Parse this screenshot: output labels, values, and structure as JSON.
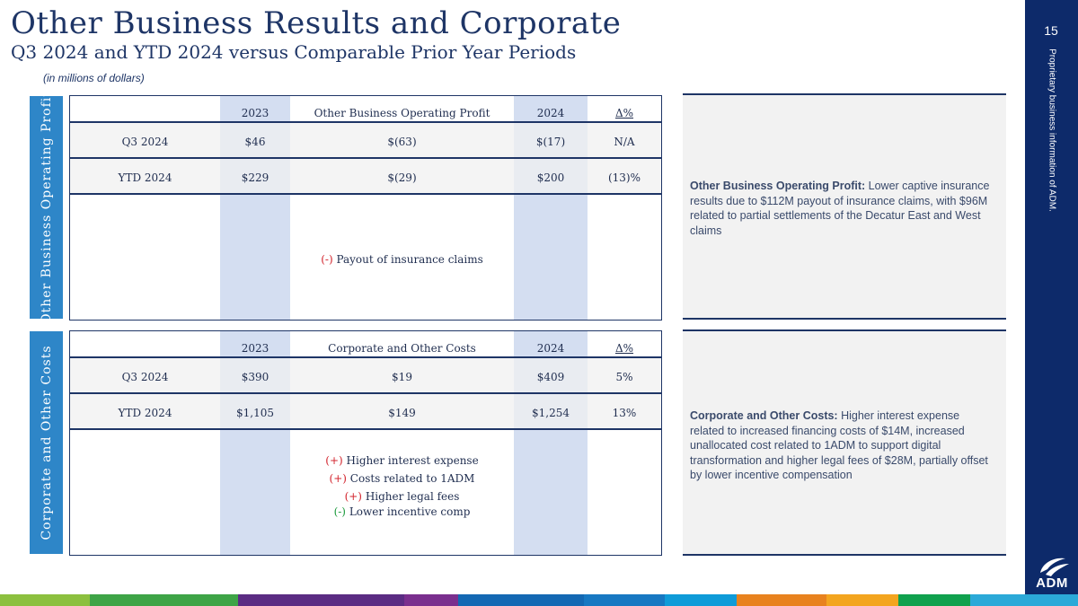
{
  "header": {
    "title": "Other Business Results and Corporate",
    "subtitle": "Q3 2024 and YTD 2024 versus Comparable Prior Year Periods",
    "units_note": "(in millions of dollars)"
  },
  "page_number": "15",
  "confidentiality": "Proprietary business information of ADM.",
  "logo": {
    "text": "ADM"
  },
  "colors": {
    "navy": "#1e3566",
    "side_tab_blue": "#2e86c8",
    "column_highlight": "#d4def1",
    "increase_red": "#d3262f",
    "decrease_green": "#1e9c3e",
    "right_bar": "#0d2a6a",
    "footer_stripes": [
      "#8cc03f",
      "#3ea446",
      "#6b2d8a",
      "#5b2c83",
      "#7a2f8e",
      "#1368b3",
      "#1778c2",
      "#0f9bd8",
      "#e8821e",
      "#f3a51f",
      "#10a14e",
      "#2ba9d8"
    ]
  },
  "sections": [
    {
      "side_label": "Other Business Operating Profit",
      "columns": [
        "2023",
        "Other Business Operating Profit",
        "2024",
        "Δ%"
      ],
      "rows": [
        {
          "period": "Q3 2024",
          "prior": "$46",
          "change": "$(63)",
          "current": "$(17)",
          "pct": "N/A"
        },
        {
          "period": "YTD 2024",
          "prior": "$229",
          "change": "$(29)",
          "current": "$200",
          "pct": "(13)%"
        }
      ],
      "drivers": [
        {
          "sign": "(-)",
          "text": "Payout of insurance claims",
          "direction": "decrease"
        }
      ],
      "commentary": {
        "heading": "Other Business Operating Profit:",
        "body": " Lower captive insurance results due to $112M payout of insurance claims, with $96M related to partial settlements of the Decatur East and West claims"
      }
    },
    {
      "side_label": "Corporate and Other Costs",
      "columns": [
        "2023",
        "Corporate and Other Costs",
        "2024",
        "Δ%"
      ],
      "rows": [
        {
          "period": "Q3 2024",
          "prior": "$390",
          "change": "$19",
          "current": "$409",
          "pct": "5%"
        },
        {
          "period": "YTD 2024",
          "prior": "$1,105",
          "change": "$149",
          "current": "$1,254",
          "pct": "13%"
        }
      ],
      "drivers": [
        {
          "sign": "(+)",
          "text": "Higher interest expense",
          "direction": "increase"
        },
        {
          "sign": "(+)",
          "text": "Costs related to 1ADM",
          "direction": "increase"
        },
        {
          "sign": "(+)",
          "text": "Higher legal fees",
          "direction": "increase"
        },
        {
          "sign": "(-)",
          "text": "Lower incentive comp",
          "direction": "decrease"
        }
      ],
      "commentary": {
        "heading": "Corporate and Other Costs:",
        "body": " Higher interest expense related to increased financing costs of $14M, increased unallocated cost related to 1ADM to support digital transformation and higher legal fees of $28M, partially offset by lower incentive compensation"
      }
    }
  ]
}
